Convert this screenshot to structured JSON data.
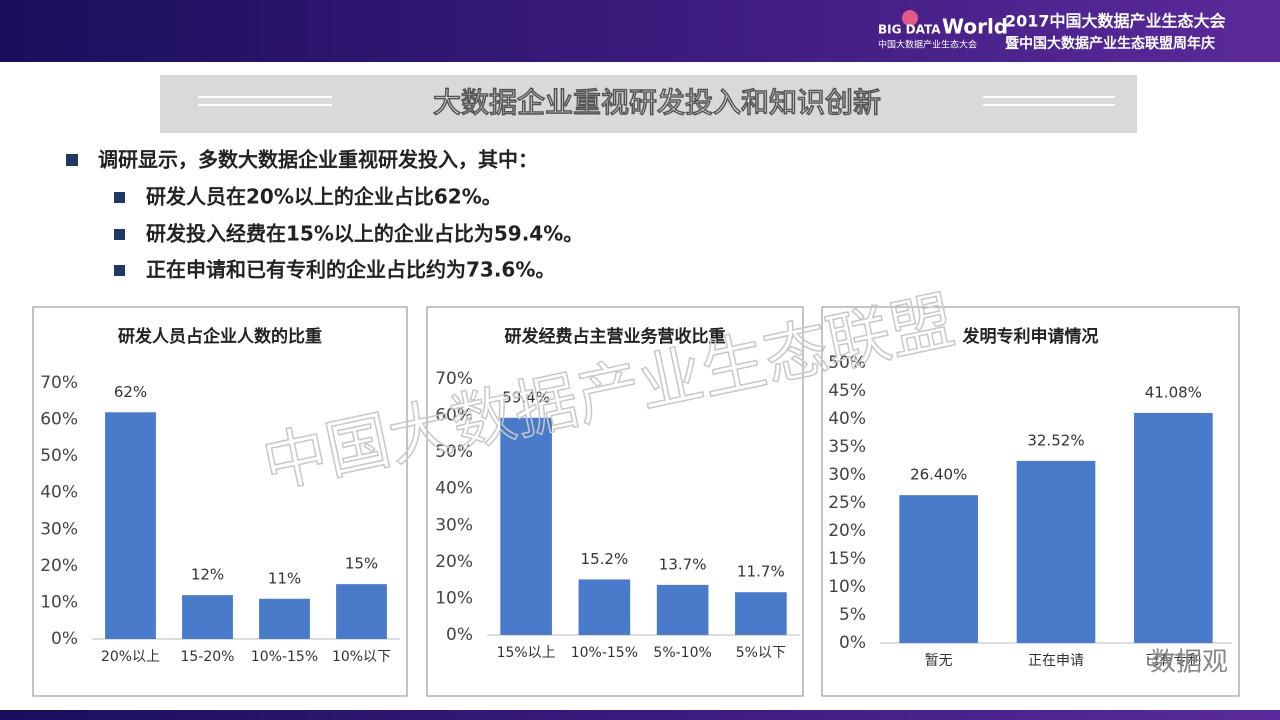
{
  "header": {
    "logo_big": "BIG DATA",
    "logo_world": "World",
    "logo_sub": "中国大数据产业生态大会",
    "event_line1": "2017中国大数据产业生态大会",
    "event_line2": "暨中国大数据产业生态联盟周年庆"
  },
  "slide_title": "大数据企业重视研发投入和知识创新",
  "bullets": {
    "main": "调研显示，多数大数据企业重视研发投入，其中：",
    "sub": [
      "研发人员在20%以上的企业占比62%。",
      "研发投入经费在15%以上的企业占比为59.4%。",
      "正在申请和已有专利的企业占比约为73.6%。"
    ]
  },
  "watermark": "中国大数据产业生态联盟",
  "corner_mark": "数据观",
  "chart_data": [
    {
      "type": "bar",
      "title": "研发人员占企业人数的比重",
      "categories": [
        "20%以上",
        "15-20%",
        "10%-15%",
        "10%以下"
      ],
      "values": [
        62,
        12,
        11,
        15
      ],
      "value_labels": [
        "62%",
        "12%",
        "11%",
        "15%"
      ],
      "color": "#4a7bcb",
      "ylim": [
        0,
        70
      ],
      "yticks": [
        {
          "value": 0,
          "label": "0%"
        },
        {
          "value": 10,
          "label": "10%"
        },
        {
          "value": 20,
          "label": "20%"
        },
        {
          "value": 30,
          "label": "30%"
        },
        {
          "value": 40,
          "label": "40%"
        },
        {
          "value": 50,
          "label": "50%"
        },
        {
          "value": 60,
          "label": "60%"
        },
        {
          "value": 70,
          "label": "70%"
        }
      ],
      "grid": false
    },
    {
      "type": "bar",
      "title": "研发经费占主营业务营收比重",
      "categories": [
        "15%以上",
        "10%-15%",
        "5%-10%",
        "5%以下"
      ],
      "values": [
        59.4,
        15.2,
        13.7,
        11.7
      ],
      "value_labels": [
        "59.4%",
        "15.2%",
        "13.7%",
        "11.7%"
      ],
      "color": "#4a7bcb",
      "ylim": [
        0,
        70
      ],
      "yticks": [
        {
          "value": 0,
          "label": "0%"
        },
        {
          "value": 10,
          "label": "10%"
        },
        {
          "value": 20,
          "label": "20%"
        },
        {
          "value": 30,
          "label": "30%"
        },
        {
          "value": 40,
          "label": "40%"
        },
        {
          "value": 50,
          "label": "50%"
        },
        {
          "value": 60,
          "label": "60%"
        },
        {
          "value": 70,
          "label": "70%"
        }
      ],
      "grid": false
    },
    {
      "type": "bar",
      "title": "发明专利申请情况",
      "categories": [
        "暂无",
        "正在申请",
        "已有专利"
      ],
      "values": [
        26.4,
        32.52,
        41.08
      ],
      "value_labels": [
        "26.40%",
        "32.52%",
        "41.08%"
      ],
      "color": "#4a7bcb",
      "ylim": [
        0,
        50
      ],
      "yticks": [
        {
          "value": 0,
          "label": "0%"
        },
        {
          "value": 5,
          "label": "5%"
        },
        {
          "value": 10,
          "label": "10%"
        },
        {
          "value": 15,
          "label": "15%"
        },
        {
          "value": 20,
          "label": "20%"
        },
        {
          "value": 25,
          "label": "25%"
        },
        {
          "value": 30,
          "label": "30%"
        },
        {
          "value": 35,
          "label": "35%"
        },
        {
          "value": 40,
          "label": "40%"
        },
        {
          "value": 45,
          "label": "45%"
        },
        {
          "value": 50,
          "label": "50%"
        }
      ],
      "grid": false
    }
  ]
}
